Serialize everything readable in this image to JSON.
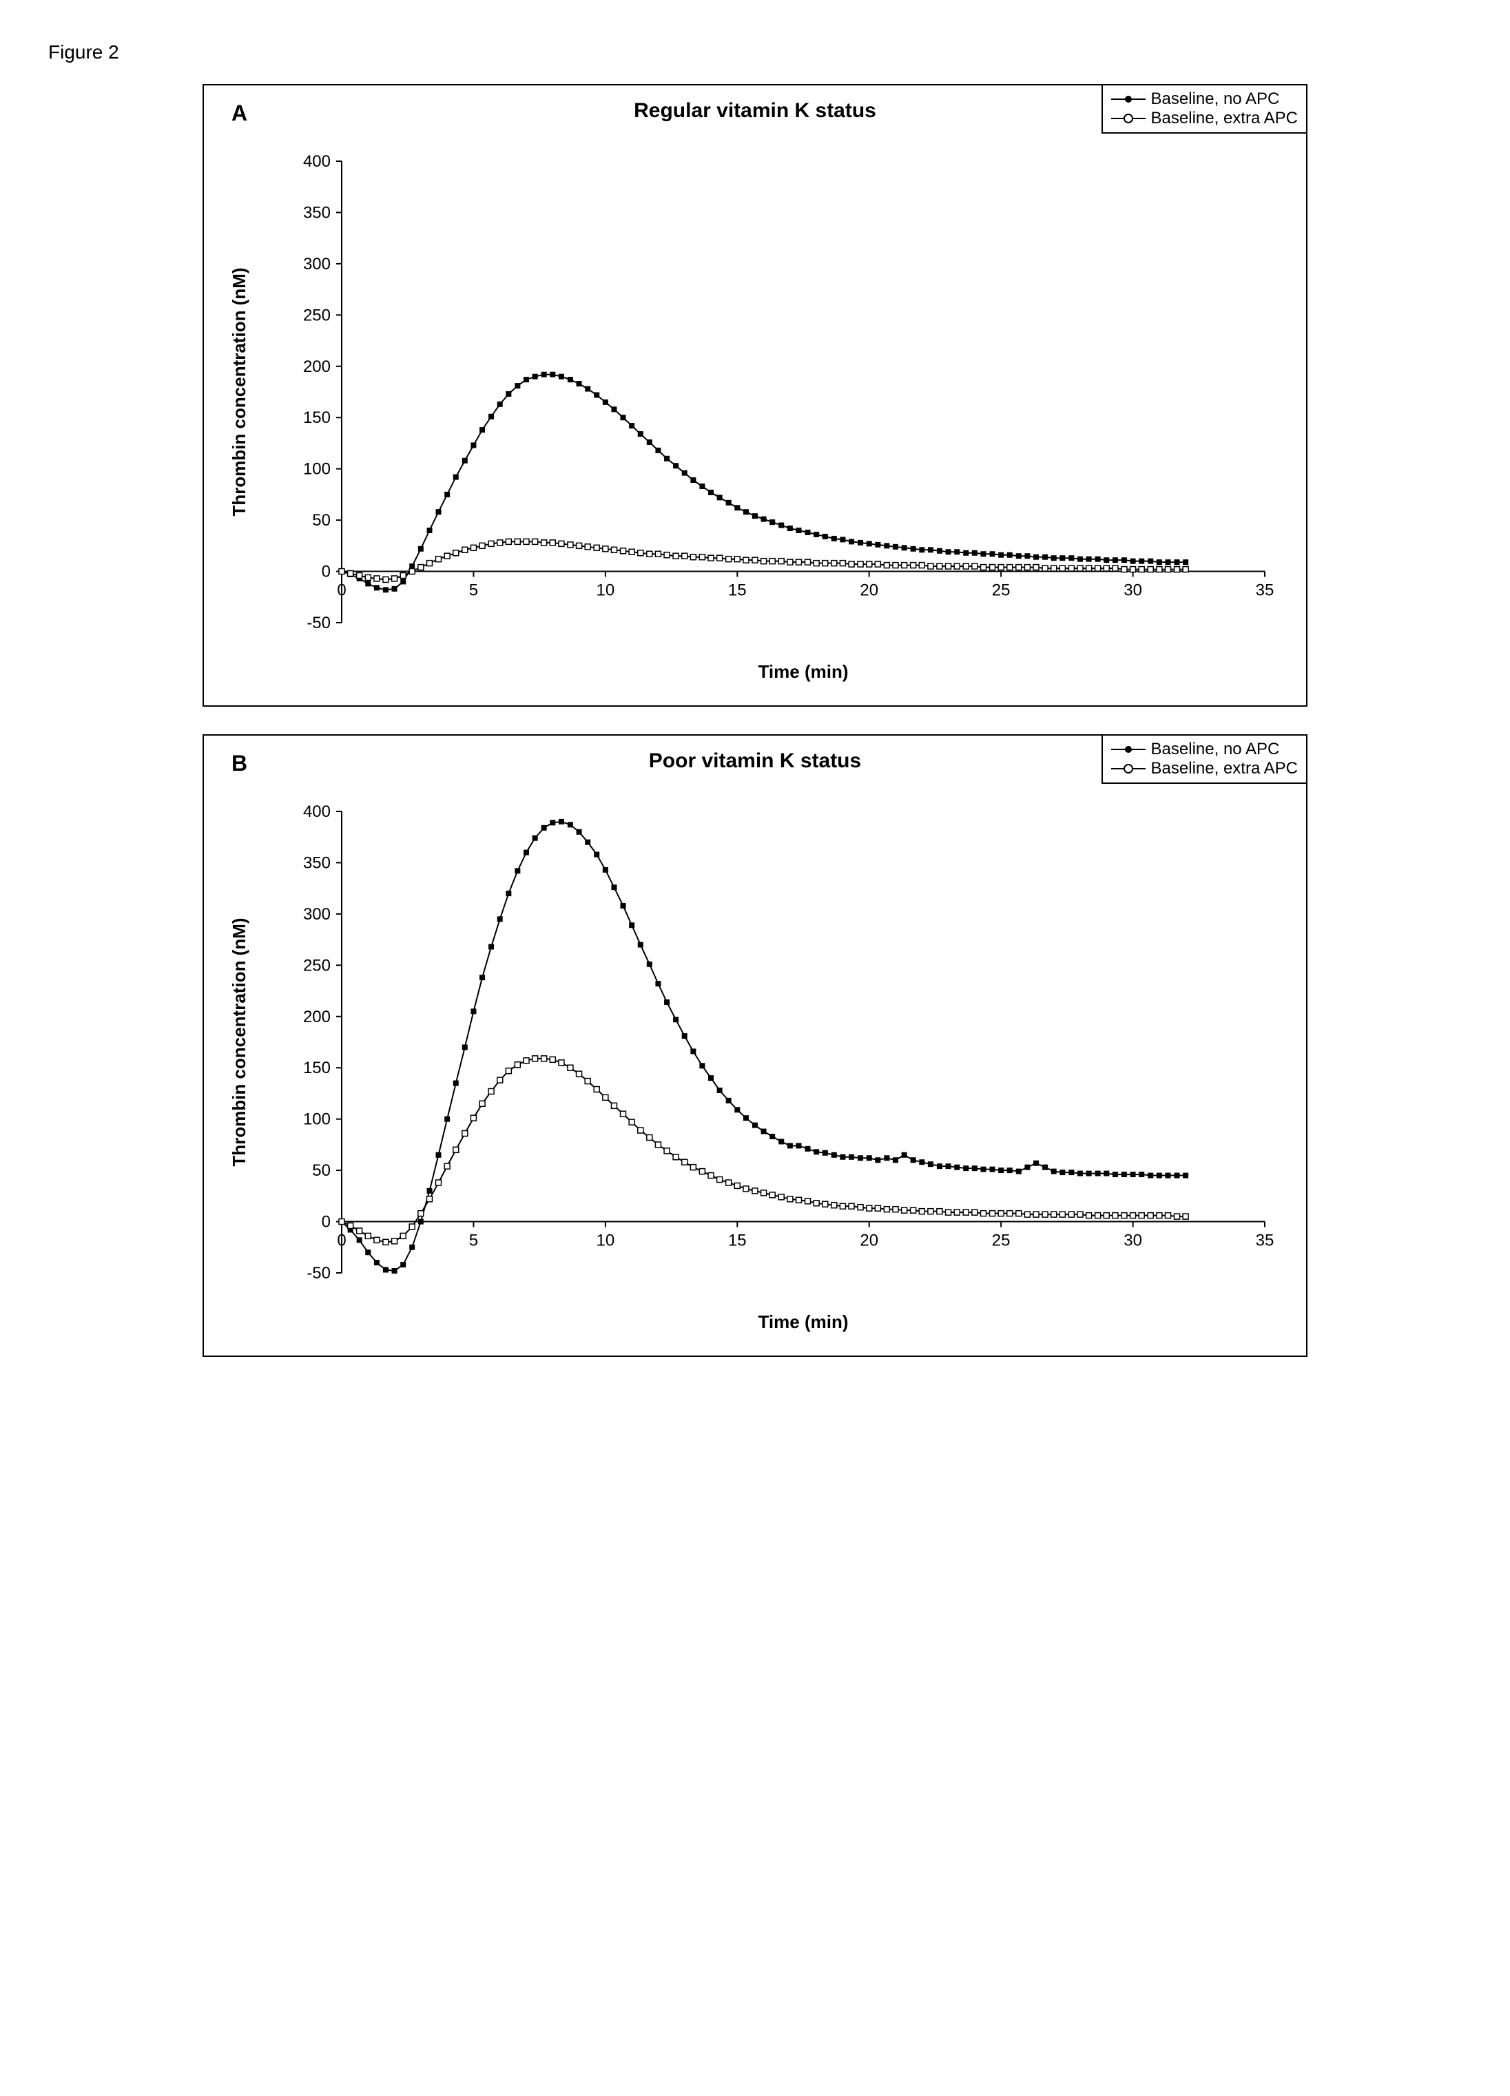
{
  "figure_label": "Figure 2",
  "legend": {
    "item1": "Baseline, no APC",
    "item2": "Baseline, extra APC"
  },
  "panelA": {
    "letter": "A",
    "title": "Regular vitamin K status",
    "type": "line",
    "xlabel": "Time (min)",
    "ylabel": "Thrombin concentration (nM)",
    "xlim": [
      0,
      35
    ],
    "ylim": [
      -50,
      400
    ],
    "xticks": [
      0,
      5,
      10,
      15,
      20,
      25,
      30,
      35
    ],
    "yticks": [
      -50,
      0,
      50,
      100,
      150,
      200,
      250,
      300,
      350,
      400
    ],
    "line_color": "#000000",
    "marker_size": 4,
    "marker_filled_color": "#000000",
    "marker_open_fill": "#ffffff",
    "marker_open_stroke": "#000000",
    "background_color": "#ffffff",
    "series_noAPC": {
      "marker": "filled-square",
      "x": [
        0,
        0.33,
        0.67,
        1,
        1.33,
        1.67,
        2,
        2.33,
        2.67,
        3,
        3.33,
        3.67,
        4,
        4.33,
        4.67,
        5,
        5.33,
        5.67,
        6,
        6.33,
        6.67,
        7,
        7.33,
        7.67,
        8,
        8.33,
        8.67,
        9,
        9.33,
        9.67,
        10,
        10.33,
        10.67,
        11,
        11.33,
        11.67,
        12,
        12.33,
        12.67,
        13,
        13.33,
        13.67,
        14,
        14.33,
        14.67,
        15,
        15.33,
        15.67,
        16,
        16.33,
        16.67,
        17,
        17.33,
        17.67,
        18,
        18.33,
        18.67,
        19,
        19.33,
        19.67,
        20,
        20.33,
        20.67,
        21,
        21.33,
        21.67,
        22,
        22.33,
        22.67,
        23,
        23.33,
        23.67,
        24,
        24.33,
        24.67,
        25,
        25.33,
        25.67,
        26,
        26.33,
        26.67,
        27,
        27.33,
        27.67,
        28,
        28.33,
        28.67,
        29,
        29.33,
        29.67,
        30,
        30.33,
        30.67,
        31,
        31.33,
        31.67,
        32
      ],
      "y": [
        0,
        -3,
        -7,
        -12,
        -16,
        -18,
        -17,
        -10,
        5,
        22,
        40,
        58,
        75,
        92,
        108,
        123,
        138,
        151,
        163,
        173,
        181,
        187,
        190,
        192,
        192,
        190,
        187,
        183,
        178,
        172,
        165,
        158,
        150,
        142,
        134,
        126,
        118,
        110,
        103,
        96,
        89,
        83,
        77,
        72,
        67,
        62,
        58,
        54,
        51,
        48,
        45,
        42,
        40,
        38,
        36,
        34,
        32,
        31,
        29,
        28,
        27,
        26,
        25,
        24,
        23,
        22,
        21,
        21,
        20,
        19,
        19,
        18,
        18,
        17,
        17,
        16,
        16,
        15,
        15,
        14,
        14,
        13,
        13,
        13,
        12,
        12,
        12,
        11,
        11,
        11,
        10,
        10,
        10,
        9,
        9,
        9,
        9
      ]
    },
    "series_extraAPC": {
      "marker": "open-square",
      "x": [
        0,
        0.33,
        0.67,
        1,
        1.33,
        1.67,
        2,
        2.33,
        2.67,
        3,
        3.33,
        3.67,
        4,
        4.33,
        4.67,
        5,
        5.33,
        5.67,
        6,
        6.33,
        6.67,
        7,
        7.33,
        7.67,
        8,
        8.33,
        8.67,
        9,
        9.33,
        9.67,
        10,
        10.33,
        10.67,
        11,
        11.33,
        11.67,
        12,
        12.33,
        12.67,
        13,
        13.33,
        13.67,
        14,
        14.33,
        14.67,
        15,
        15.33,
        15.67,
        16,
        16.33,
        16.67,
        17,
        17.33,
        17.67,
        18,
        18.33,
        18.67,
        19,
        19.33,
        19.67,
        20,
        20.33,
        20.67,
        21,
        21.33,
        21.67,
        22,
        22.33,
        22.67,
        23,
        23.33,
        23.67,
        24,
        24.33,
        24.67,
        25,
        25.33,
        25.67,
        26,
        26.33,
        26.67,
        27,
        27.33,
        27.67,
        28,
        28.33,
        28.67,
        29,
        29.33,
        29.67,
        30,
        30.33,
        30.67,
        31,
        31.33,
        31.67,
        32
      ],
      "y": [
        0,
        -2,
        -4,
        -6,
        -7,
        -8,
        -7,
        -4,
        0,
        4,
        8,
        12,
        15,
        18,
        21,
        23,
        25,
        27,
        28,
        29,
        29,
        29,
        29,
        28,
        28,
        27,
        26,
        25,
        24,
        23,
        22,
        21,
        20,
        19,
        18,
        17,
        17,
        16,
        15,
        15,
        14,
        14,
        13,
        13,
        12,
        12,
        11,
        11,
        10,
        10,
        10,
        9,
        9,
        9,
        8,
        8,
        8,
        8,
        7,
        7,
        7,
        7,
        6,
        6,
        6,
        6,
        6,
        5,
        5,
        5,
        5,
        5,
        5,
        4,
        4,
        4,
        4,
        4,
        4,
        4,
        3,
        3,
        3,
        3,
        3,
        3,
        3,
        3,
        3,
        2,
        2,
        2,
        2,
        2,
        2,
        2,
        2
      ]
    }
  },
  "panelB": {
    "letter": "B",
    "title": "Poor vitamin K status",
    "type": "line",
    "xlabel": "Time (min)",
    "ylabel": "Thrombin concentration (nM)",
    "xlim": [
      0,
      35
    ],
    "ylim": [
      -50,
      400
    ],
    "xticks": [
      0,
      5,
      10,
      15,
      20,
      25,
      30,
      35
    ],
    "yticks": [
      -50,
      0,
      50,
      100,
      150,
      200,
      250,
      300,
      350,
      400
    ],
    "line_color": "#000000",
    "marker_size": 4,
    "marker_filled_color": "#000000",
    "marker_open_fill": "#ffffff",
    "marker_open_stroke": "#000000",
    "background_color": "#ffffff",
    "series_noAPC": {
      "marker": "filled-square",
      "x": [
        0,
        0.33,
        0.67,
        1,
        1.33,
        1.67,
        2,
        2.33,
        2.67,
        3,
        3.33,
        3.67,
        4,
        4.33,
        4.67,
        5,
        5.33,
        5.67,
        6,
        6.33,
        6.67,
        7,
        7.33,
        7.67,
        8,
        8.33,
        8.67,
        9,
        9.33,
        9.67,
        10,
        10.33,
        10.67,
        11,
        11.33,
        11.67,
        12,
        12.33,
        12.67,
        13,
        13.33,
        13.67,
        14,
        14.33,
        14.67,
        15,
        15.33,
        15.67,
        16,
        16.33,
        16.67,
        17,
        17.33,
        17.67,
        18,
        18.33,
        18.67,
        19,
        19.33,
        19.67,
        20,
        20.33,
        20.67,
        21,
        21.33,
        21.67,
        22,
        22.33,
        22.67,
        23,
        23.33,
        23.67,
        24,
        24.33,
        24.67,
        25,
        25.33,
        25.67,
        26,
        26.33,
        26.67,
        27,
        27.33,
        27.67,
        28,
        28.33,
        28.67,
        29,
        29.33,
        29.67,
        30,
        30.33,
        30.67,
        31,
        31.33,
        31.67,
        32
      ],
      "y": [
        0,
        -8,
        -18,
        -30,
        -40,
        -47,
        -48,
        -42,
        -25,
        0,
        30,
        65,
        100,
        135,
        170,
        205,
        238,
        268,
        295,
        320,
        342,
        360,
        374,
        384,
        389,
        390,
        387,
        380,
        370,
        358,
        343,
        326,
        308,
        289,
        270,
        251,
        232,
        214,
        197,
        181,
        166,
        152,
        140,
        128,
        118,
        109,
        101,
        94,
        88,
        83,
        78,
        74,
        74,
        71,
        68,
        67,
        65,
        63,
        63,
        62,
        62,
        60,
        62,
        60,
        65,
        60,
        58,
        56,
        54,
        54,
        53,
        52,
        52,
        51,
        51,
        50,
        50,
        49,
        53,
        57,
        53,
        49,
        48,
        48,
        47,
        47,
        47,
        47,
        46,
        46,
        46,
        46,
        45,
        45,
        45,
        45,
        45
      ]
    },
    "series_extraAPC": {
      "marker": "open-square",
      "x": [
        0,
        0.33,
        0.67,
        1,
        1.33,
        1.67,
        2,
        2.33,
        2.67,
        3,
        3.33,
        3.67,
        4,
        4.33,
        4.67,
        5,
        5.33,
        5.67,
        6,
        6.33,
        6.67,
        7,
        7.33,
        7.67,
        8,
        8.33,
        8.67,
        9,
        9.33,
        9.67,
        10,
        10.33,
        10.67,
        11,
        11.33,
        11.67,
        12,
        12.33,
        12.67,
        13,
        13.33,
        13.67,
        14,
        14.33,
        14.67,
        15,
        15.33,
        15.67,
        16,
        16.33,
        16.67,
        17,
        17.33,
        17.67,
        18,
        18.33,
        18.67,
        19,
        19.33,
        19.67,
        20,
        20.33,
        20.67,
        21,
        21.33,
        21.67,
        22,
        22.33,
        22.67,
        23,
        23.33,
        23.67,
        24,
        24.33,
        24.67,
        25,
        25.33,
        25.67,
        26,
        26.33,
        26.67,
        27,
        27.33,
        27.67,
        28,
        28.33,
        28.67,
        29,
        29.33,
        29.67,
        30,
        30.33,
        30.67,
        31,
        31.33,
        31.67,
        32
      ],
      "y": [
        0,
        -4,
        -9,
        -14,
        -18,
        -20,
        -19,
        -14,
        -5,
        8,
        22,
        38,
        54,
        70,
        86,
        101,
        115,
        127,
        138,
        147,
        153,
        157,
        159,
        159,
        158,
        155,
        150,
        144,
        137,
        129,
        121,
        113,
        105,
        97,
        89,
        82,
        75,
        69,
        63,
        58,
        53,
        49,
        45,
        41,
        38,
        35,
        32,
        30,
        28,
        26,
        24,
        22,
        21,
        20,
        18,
        17,
        16,
        15,
        15,
        14,
        13,
        13,
        12,
        12,
        11,
        11,
        10,
        10,
        10,
        9,
        9,
        9,
        9,
        8,
        8,
        8,
        8,
        8,
        7,
        7,
        7,
        7,
        7,
        7,
        7,
        6,
        6,
        6,
        6,
        6,
        6,
        6,
        6,
        6,
        6,
        5,
        5
      ]
    }
  }
}
